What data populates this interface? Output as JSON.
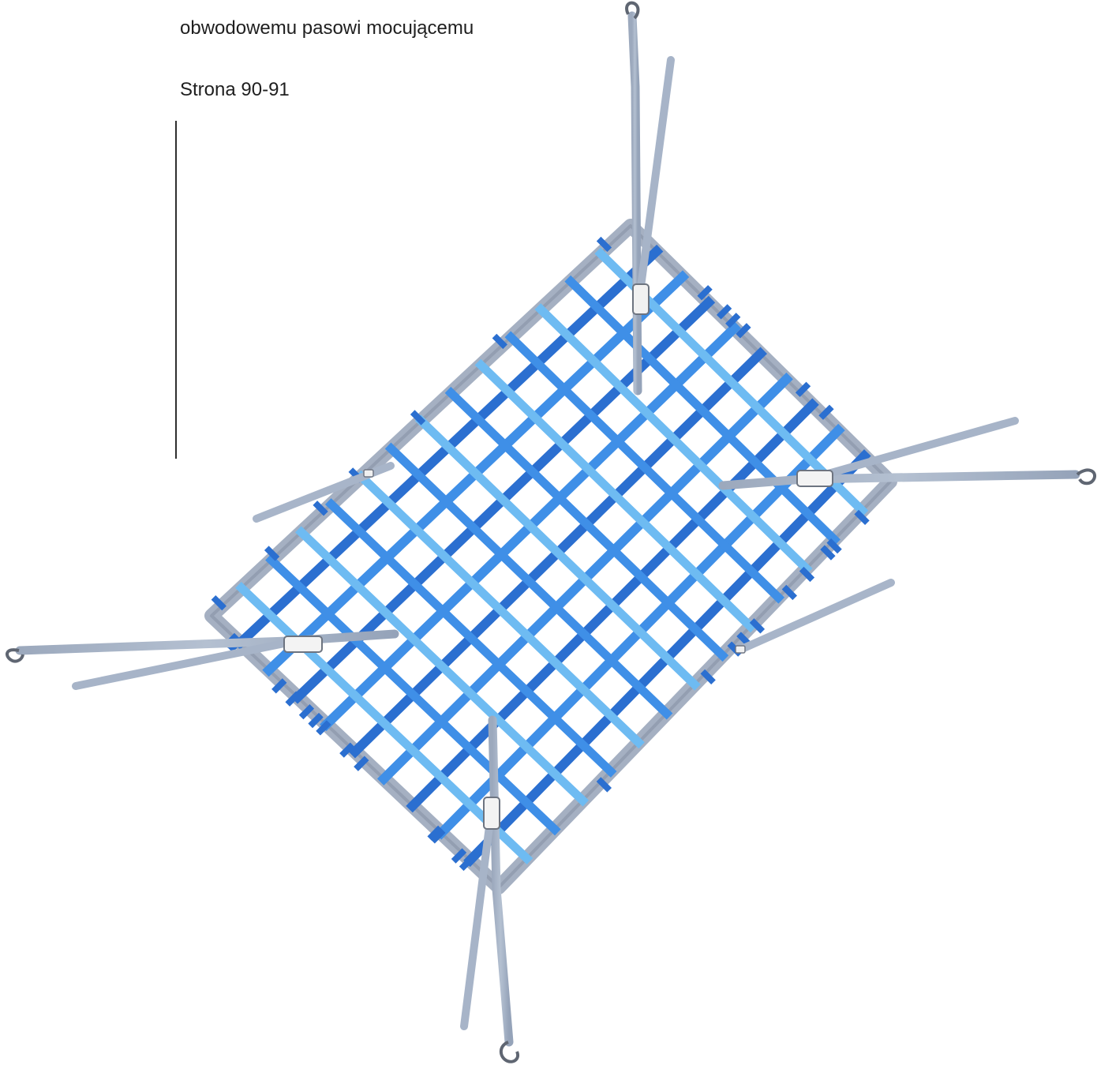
{
  "caption": {
    "line1": "obwodowemu pasowi mocującemu",
    "page_ref": "Strona 90-91"
  },
  "illustration": {
    "subject": "cargo-net",
    "mesh_colors": {
      "dark_blue": "#2b6fd0",
      "mid_blue": "#3f8fe7",
      "light_blue": "#6ebbf2",
      "strap_gray": "#a8b5c9",
      "buckle_gray": "#7f8794"
    }
  }
}
